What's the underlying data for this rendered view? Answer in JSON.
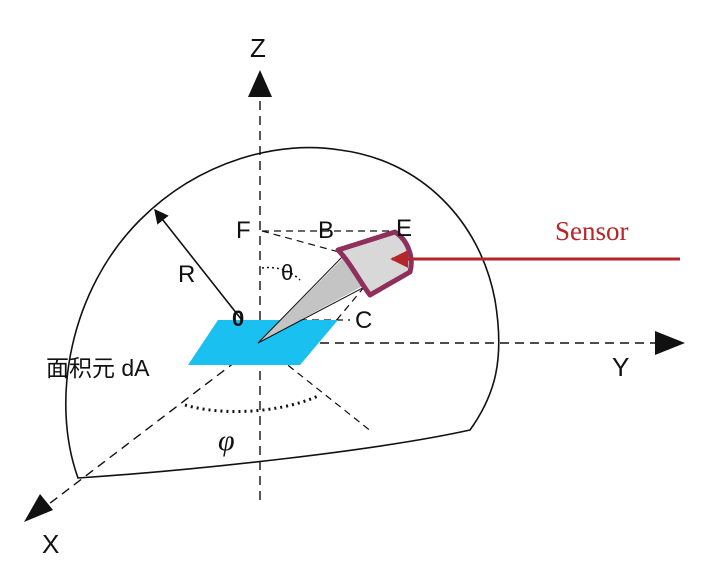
{
  "labels": {
    "z_axis": "Z",
    "y_axis": "Y",
    "x_axis": "X",
    "radius": "R",
    "theta": "θ",
    "phi": "φ",
    "origin": "0",
    "point_f": "F",
    "point_b": "B",
    "point_e": "E",
    "point_c": "C",
    "area_element": "面积元 dA",
    "sensor": "Sensor"
  },
  "colors": {
    "line": "#111111",
    "area_element": "#19c0f0",
    "cone": "#c4c4c4",
    "sensor_frame": "#8e2f5c",
    "sensor_label": "#b3262a",
    "sensor_arrow": "#b3262a"
  }
}
